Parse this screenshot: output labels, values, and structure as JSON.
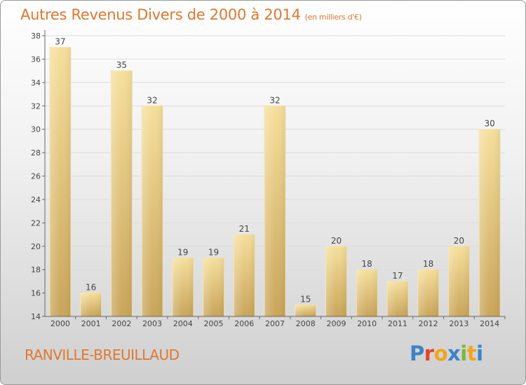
{
  "title": "Autres Revenus Divers de 2000 à 2014",
  "subtitle": "(en milliers d'€)",
  "commune": "RANVILLE-BREUILLAUD",
  "logo": {
    "letters": [
      {
        "char": "P",
        "color": "#3a84c8"
      },
      {
        "char": "r",
        "color": "#e2452c"
      },
      {
        "char": "o",
        "color": "#f2a51a"
      },
      {
        "char": "x",
        "color": "#3a84c8"
      },
      {
        "char": "i",
        "color": "#7ab83a"
      },
      {
        "char": "t",
        "color": "#f2a51a"
      },
      {
        "char": "i",
        "color": "#3a84c8"
      }
    ]
  },
  "chart_data": {
    "type": "bar",
    "title": "Autres Revenus Divers de 2000 à 2014",
    "subtitle": "(en milliers d'€)",
    "categories": [
      "2000",
      "2001",
      "2002",
      "2003",
      "2004",
      "2005",
      "2006",
      "2007",
      "2008",
      "2009",
      "2010",
      "2011",
      "2012",
      "2013",
      "2014"
    ],
    "values": [
      37,
      16,
      35,
      32,
      19,
      19,
      21,
      32,
      15,
      20,
      18,
      17,
      18,
      20,
      30
    ],
    "ylim": [
      14,
      38
    ],
    "yticks": [
      14,
      16,
      18,
      20,
      22,
      24,
      26,
      28,
      30,
      32,
      34,
      36,
      38
    ],
    "grid": true,
    "bar_color": "#e8c47a"
  }
}
